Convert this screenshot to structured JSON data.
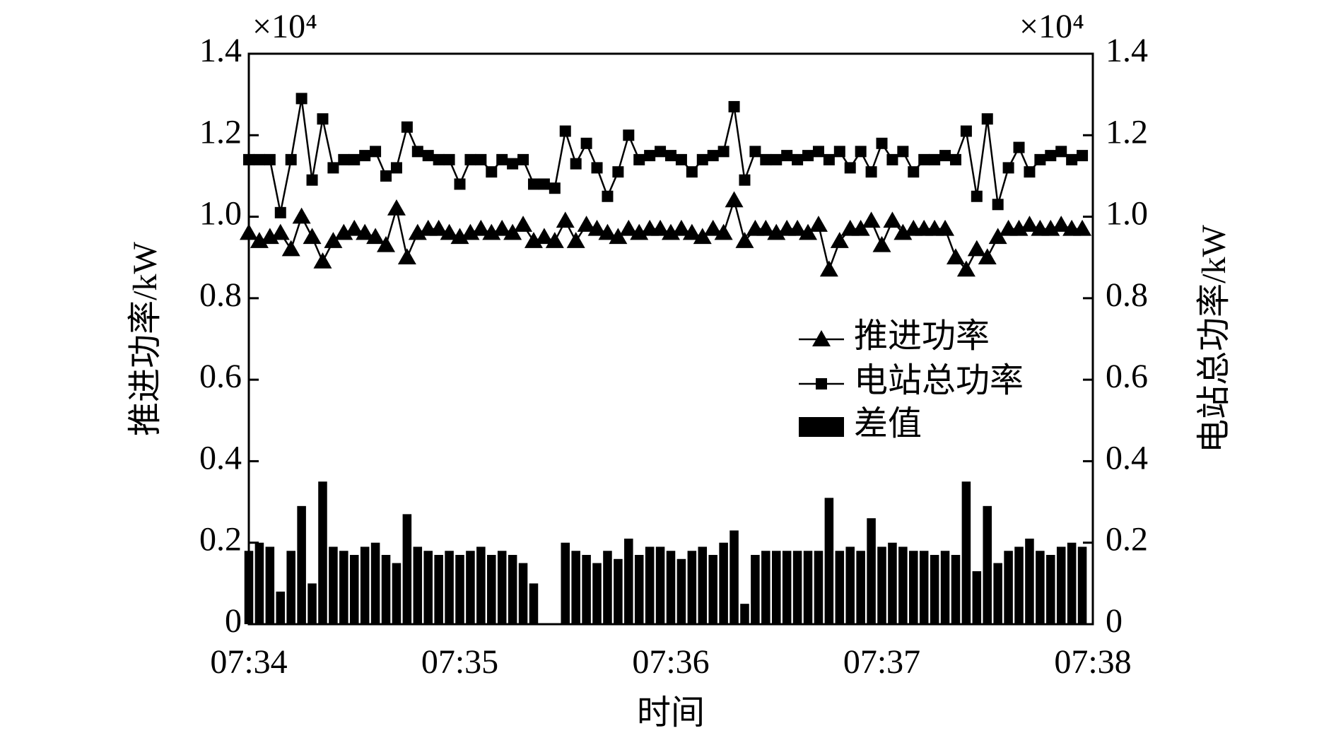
{
  "chart_data": {
    "type": "bar_line",
    "xlabel": "时间",
    "ylabel": "推进功率/kW",
    "y2label": "电站总功率/kW",
    "annotations": [
      "×10⁴",
      "×10⁴"
    ],
    "xlim": [
      454,
      458
    ],
    "xticks": [
      {
        "value": 454,
        "label": "07:34"
      },
      {
        "value": 455,
        "label": "07:35"
      },
      {
        "value": 456,
        "label": "07:36"
      },
      {
        "value": 457,
        "label": "07:37"
      },
      {
        "value": 458,
        "label": "07:38"
      }
    ],
    "ylim": [
      0,
      1.4
    ],
    "yticks": [
      0,
      0.2,
      0.4,
      0.6,
      0.8,
      {
        "value": 1,
        "label": "1.0"
      },
      1.2,
      1.4
    ],
    "y2lim": [
      0,
      1.4
    ],
    "y2ticks": [
      0,
      0.2,
      0.4,
      0.6,
      0.8,
      {
        "value": 1,
        "label": "1.0"
      },
      1.2,
      1.4
    ],
    "x": [
      454.0,
      454.05,
      454.1,
      454.15,
      454.2,
      454.25,
      454.3,
      454.35,
      454.4,
      454.45,
      454.5,
      454.55,
      454.6,
      454.65,
      454.7,
      454.75,
      454.8,
      454.85,
      454.9,
      454.95,
      455.0,
      455.05,
      455.1,
      455.15,
      455.2,
      455.25,
      455.3,
      455.35,
      455.4,
      455.45,
      455.5,
      455.55,
      455.6,
      455.65,
      455.7,
      455.75,
      455.8,
      455.85,
      455.9,
      455.95,
      456.0,
      456.05,
      456.1,
      456.15,
      456.2,
      456.25,
      456.3,
      456.35,
      456.4,
      456.45,
      456.5,
      456.55,
      456.6,
      456.65,
      456.7,
      456.75,
      456.8,
      456.85,
      456.9,
      456.95,
      457.0,
      457.05,
      457.1,
      457.15,
      457.2,
      457.25,
      457.3,
      457.35,
      457.4,
      457.45,
      457.5,
      457.55,
      457.6,
      457.65,
      457.7,
      457.75,
      457.8,
      457.85,
      457.9,
      457.95
    ],
    "series": [
      {
        "name": "推进功率",
        "type": "line",
        "marker": "triangle",
        "color": "#000000",
        "values": [
          0.96,
          0.94,
          0.95,
          0.96,
          0.92,
          1.0,
          0.95,
          0.89,
          0.94,
          0.96,
          0.97,
          0.96,
          0.95,
          0.93,
          1.02,
          0.9,
          0.96,
          0.97,
          0.97,
          0.96,
          0.95,
          0.96,
          0.97,
          0.96,
          0.97,
          0.96,
          0.98,
          0.94,
          0.95,
          0.94,
          0.99,
          0.94,
          0.98,
          0.97,
          0.96,
          0.95,
          0.97,
          0.96,
          0.97,
          0.97,
          0.96,
          0.97,
          0.96,
          0.95,
          0.97,
          0.96,
          1.04,
          0.94,
          0.97,
          0.97,
          0.96,
          0.97,
          0.97,
          0.96,
          0.98,
          0.87,
          0.94,
          0.97,
          0.97,
          0.99,
          0.93,
          0.99,
          0.96,
          0.97,
          0.97,
          0.97,
          0.97,
          0.9,
          0.87,
          0.92,
          0.9,
          0.95,
          0.97,
          0.97,
          0.98,
          0.97,
          0.97,
          0.98,
          0.97,
          0.97
        ]
      },
      {
        "name": "电站总功率",
        "type": "line",
        "marker": "square",
        "color": "#000000",
        "values": [
          1.14,
          1.14,
          1.14,
          1.01,
          1.14,
          1.29,
          1.09,
          1.24,
          1.12,
          1.14,
          1.14,
          1.15,
          1.16,
          1.1,
          1.12,
          1.22,
          1.16,
          1.15,
          1.14,
          1.14,
          1.08,
          1.14,
          1.14,
          1.11,
          1.14,
          1.13,
          1.14,
          1.08,
          1.08,
          1.07,
          1.21,
          1.13,
          1.18,
          1.12,
          1.05,
          1.11,
          1.2,
          1.14,
          1.15,
          1.16,
          1.15,
          1.14,
          1.11,
          1.14,
          1.15,
          1.16,
          1.27,
          1.09,
          1.16,
          1.14,
          1.14,
          1.15,
          1.14,
          1.15,
          1.16,
          1.14,
          1.16,
          1.12,
          1.16,
          1.11,
          1.18,
          1.14,
          1.16,
          1.11,
          1.14,
          1.14,
          1.15,
          1.14,
          1.21,
          1.05,
          1.24,
          1.03,
          1.12,
          1.17,
          1.11,
          1.14,
          1.15,
          1.16,
          1.14,
          1.15
        ]
      },
      {
        "name": "差值",
        "type": "bar",
        "color": "#000000",
        "values": [
          0.18,
          0.2,
          0.19,
          0.08,
          0.18,
          0.29,
          0.1,
          0.35,
          0.19,
          0.18,
          0.17,
          0.19,
          0.2,
          0.17,
          0.15,
          0.27,
          0.19,
          0.18,
          0.17,
          0.18,
          0.17,
          0.18,
          0.19,
          0.17,
          0.18,
          0.17,
          0.15,
          0.1,
          0,
          0,
          0.2,
          0.18,
          0.17,
          0.15,
          0.18,
          0.16,
          0.21,
          0.17,
          0.19,
          0.19,
          0.18,
          0.16,
          0.18,
          0.19,
          0.17,
          0.2,
          0.23,
          0.05,
          0.17,
          0.18,
          0.18,
          0.18,
          0.18,
          0.18,
          0.18,
          0.31,
          0.18,
          0.19,
          0.18,
          0.26,
          0.19,
          0.2,
          0.19,
          0.18,
          0.18,
          0.17,
          0.18,
          0.17,
          0.35,
          0.13,
          0.29,
          0.15,
          0.18,
          0.19,
          0.21,
          0.18,
          0.17,
          0.19,
          0.2,
          0.19
        ]
      }
    ]
  }
}
